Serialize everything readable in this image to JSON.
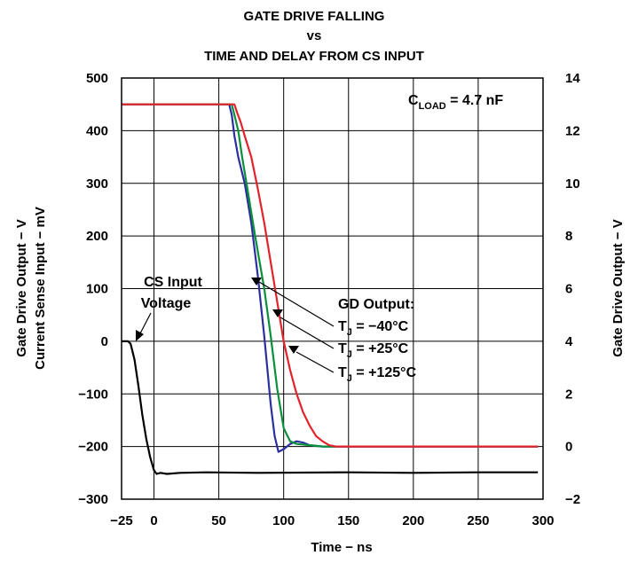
{
  "chart_data": {
    "type": "line",
    "title_lines": [
      "GATE DRIVE FALLING",
      "vs",
      "TIME AND DELAY FROM CS INPUT"
    ],
    "xlabel": "Time − ns",
    "ylabel_left_lines": [
      "Gate Drive Output − V",
      "Current Sense Input − mV"
    ],
    "ylabel_right": "Gate Drive Output − V",
    "xlim": [
      -25,
      300
    ],
    "ylim_left": [
      -300,
      500
    ],
    "ylim_right": [
      -2,
      14
    ],
    "x_ticks": [
      -25,
      0,
      50,
      100,
      150,
      200,
      250,
      300
    ],
    "x_tick_labels": [
      "−25",
      "0",
      "50",
      "100",
      "150",
      "200",
      "250",
      "300"
    ],
    "y_left_ticks": [
      500,
      400,
      300,
      200,
      100,
      0,
      -100,
      -200,
      -300
    ],
    "y_left_tick_labels": [
      "500",
      "400",
      "300",
      "200",
      "100",
      "0",
      "−100",
      "−200",
      "−300"
    ],
    "y_right_ticks": [
      14,
      12,
      10,
      8,
      6,
      4,
      2,
      0,
      -2
    ],
    "y_right_tick_labels": [
      "14",
      "12",
      "10",
      "8",
      "6",
      "4",
      "2",
      "0",
      "−2"
    ],
    "grid": true,
    "series": [
      {
        "name": "CS Input Voltage",
        "color": "#000000",
        "axis": "left",
        "x": [
          -30,
          -22,
          -20,
          -18,
          -15,
          -12,
          -9,
          -6,
          -3,
          0,
          2,
          5,
          10,
          20,
          40,
          80,
          150,
          200,
          250,
          296
        ],
        "y": [
          0,
          0,
          0,
          -5,
          -35,
          -85,
          -140,
          -185,
          -220,
          -245,
          -252,
          -250,
          -252,
          -250,
          -249,
          -250,
          -249,
          -250,
          -249,
          -249
        ]
      },
      {
        "name": "T_J = −40°C",
        "color": "#2b2f9e",
        "axis": "right",
        "x": [
          -30,
          0,
          40,
          58,
          60,
          62,
          65,
          70,
          75,
          80,
          85,
          90,
          93,
          96,
          100,
          105,
          110,
          115,
          120,
          130,
          140,
          160,
          200,
          250,
          296
        ],
        "y": [
          13.0,
          13.0,
          13.0,
          13.0,
          12.6,
          11.8,
          11.0,
          10.0,
          8.5,
          6.5,
          4.2,
          1.6,
          0.4,
          -0.2,
          -0.1,
          0.1,
          0.2,
          0.15,
          0.05,
          0.0,
          0.0,
          0.0,
          0.0,
          0.0,
          0.0
        ]
      },
      {
        "name": "T_J = +25°C",
        "color": "#0a8f3c",
        "axis": "right",
        "x": [
          -30,
          0,
          40,
          60,
          62,
          65,
          68,
          72,
          78,
          85,
          90,
          95,
          100,
          105,
          110,
          120,
          130,
          140,
          160,
          200,
          250,
          296
        ],
        "y": [
          13.0,
          13.0,
          13.0,
          13.0,
          12.6,
          12.0,
          11.0,
          9.8,
          8.0,
          6.0,
          4.2,
          2.2,
          0.7,
          0.2,
          0.1,
          0.05,
          0.0,
          0.0,
          0.0,
          0.0,
          0.0,
          0.0
        ]
      },
      {
        "name": "T_J = +125°C",
        "color": "#e3232b",
        "axis": "right",
        "x": [
          -30,
          0,
          40,
          62,
          64,
          67,
          70,
          75,
          80,
          85,
          90,
          95,
          100,
          105,
          110,
          115,
          120,
          125,
          130,
          135,
          140,
          150,
          160,
          200,
          250,
          296
        ],
        "y": [
          13.0,
          13.0,
          13.0,
          13.0,
          12.7,
          12.3,
          11.8,
          11.0,
          9.8,
          8.5,
          7.0,
          5.5,
          4.0,
          2.9,
          2.0,
          1.3,
          0.8,
          0.4,
          0.2,
          0.05,
          0.0,
          0.0,
          0.0,
          0.0,
          0.0,
          0.0
        ]
      }
    ],
    "annotations": {
      "cload_main": "C",
      "cload_sub": "LOAD",
      "cload_rest": " = 4.7 nF",
      "cs_label_line1": "CS Input",
      "cs_label_line2": "Voltage",
      "gd_header": "GD Output:",
      "tj_main": "T",
      "tj_sub": "J",
      "tj_lines": [
        " = −40°C",
        " = +25°C",
        " = +125°C"
      ]
    }
  }
}
